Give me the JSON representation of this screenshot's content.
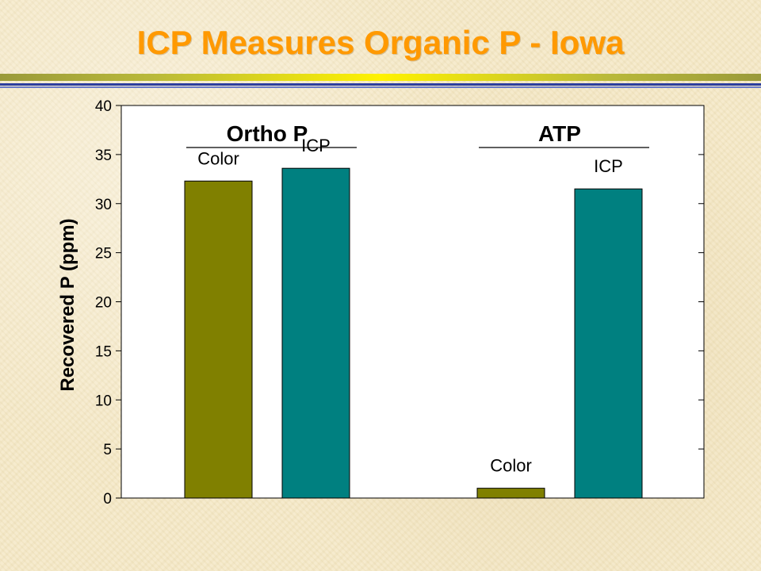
{
  "slide": {
    "title": "ICP Measures Organic P - Iowa"
  },
  "colors": {
    "title": "#ff9900",
    "color_method": "#808000",
    "icp_method": "#008080",
    "plot_background": "#ffffff"
  },
  "chart_data": {
    "type": "bar",
    "title": "",
    "xlabel": "",
    "ylabel": "Recovered P (ppm)",
    "ylim": [
      0,
      40
    ],
    "y_ticks": [
      0,
      5,
      10,
      15,
      20,
      25,
      30,
      35,
      40
    ],
    "grid": false,
    "legend": "none",
    "categories": [
      "Ortho P",
      "ATP"
    ],
    "series": [
      {
        "name": "Color",
        "values": [
          32.3,
          1.0
        ]
      },
      {
        "name": "ICP",
        "values": [
          33.6,
          31.5
        ]
      }
    ]
  }
}
